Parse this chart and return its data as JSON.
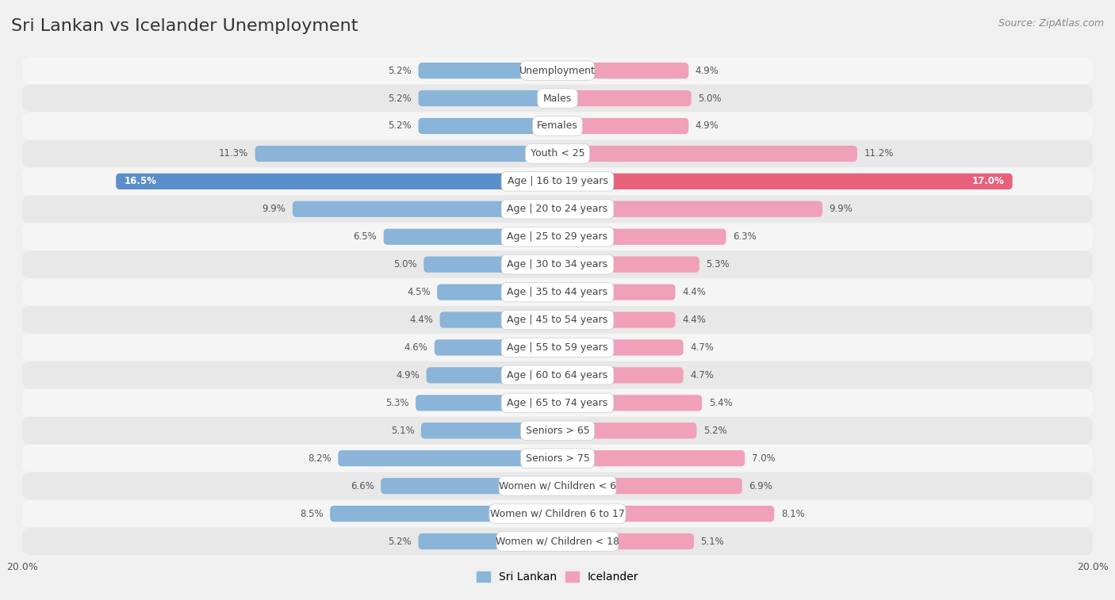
{
  "title": "Sri Lankan vs Icelander Unemployment",
  "source": "Source: ZipAtlas.com",
  "categories": [
    "Unemployment",
    "Males",
    "Females",
    "Youth < 25",
    "Age | 16 to 19 years",
    "Age | 20 to 24 years",
    "Age | 25 to 29 years",
    "Age | 30 to 34 years",
    "Age | 35 to 44 years",
    "Age | 45 to 54 years",
    "Age | 55 to 59 years",
    "Age | 60 to 64 years",
    "Age | 65 to 74 years",
    "Seniors > 65",
    "Seniors > 75",
    "Women w/ Children < 6",
    "Women w/ Children 6 to 17",
    "Women w/ Children < 18"
  ],
  "sri_lankan": [
    5.2,
    5.2,
    5.2,
    11.3,
    16.5,
    9.9,
    6.5,
    5.0,
    4.5,
    4.4,
    4.6,
    4.9,
    5.3,
    5.1,
    8.2,
    6.6,
    8.5,
    5.2
  ],
  "icelander": [
    4.9,
    5.0,
    4.9,
    11.2,
    17.0,
    9.9,
    6.3,
    5.3,
    4.4,
    4.4,
    4.7,
    4.7,
    5.4,
    5.2,
    7.0,
    6.9,
    8.1,
    5.1
  ],
  "sri_lankan_color": "#8ab4d8",
  "icelander_color": "#f0a0b8",
  "highlight_sri_lankan_color": "#5b8fc9",
  "highlight_icelander_color": "#e8607a",
  "row_colors": [
    "#f5f5f5",
    "#e8e8e8"
  ],
  "background_color": "#f0f0f0",
  "label_bg_color": "#ffffff",
  "max_val": 20.0,
  "bar_height": 0.58,
  "label_fontsize": 9,
  "title_fontsize": 16,
  "value_fontsize": 8.5,
  "source_fontsize": 9
}
